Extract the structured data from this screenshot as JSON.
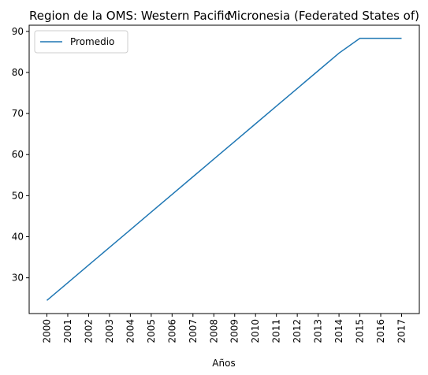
{
  "chart_data": {
    "type": "line",
    "title_left": "Region de la OMS: Western Pacific",
    "title_right": "Micronesia (Federated States of)",
    "xlabel": "Años",
    "ylabel": "",
    "x": [
      "2000",
      "2001",
      "2002",
      "2003",
      "2004",
      "2005",
      "2006",
      "2007",
      "2008",
      "2009",
      "2010",
      "2011",
      "2012",
      "2013",
      "2014",
      "2015",
      "2016",
      "2017"
    ],
    "series": [
      {
        "name": "Promedio",
        "color": "#1f77b4",
        "values": [
          24.5,
          28.8,
          33.1,
          37.4,
          41.7,
          46.0,
          50.3,
          54.6,
          58.9,
          63.2,
          67.5,
          71.8,
          76.1,
          80.4,
          84.7,
          88.3,
          88.3,
          88.3
        ]
      }
    ],
    "yticks": [
      30,
      40,
      50,
      60,
      70,
      80,
      90
    ],
    "ylim": [
      21.3,
      91.5
    ],
    "grid": false,
    "legend_position": "upper-left"
  }
}
